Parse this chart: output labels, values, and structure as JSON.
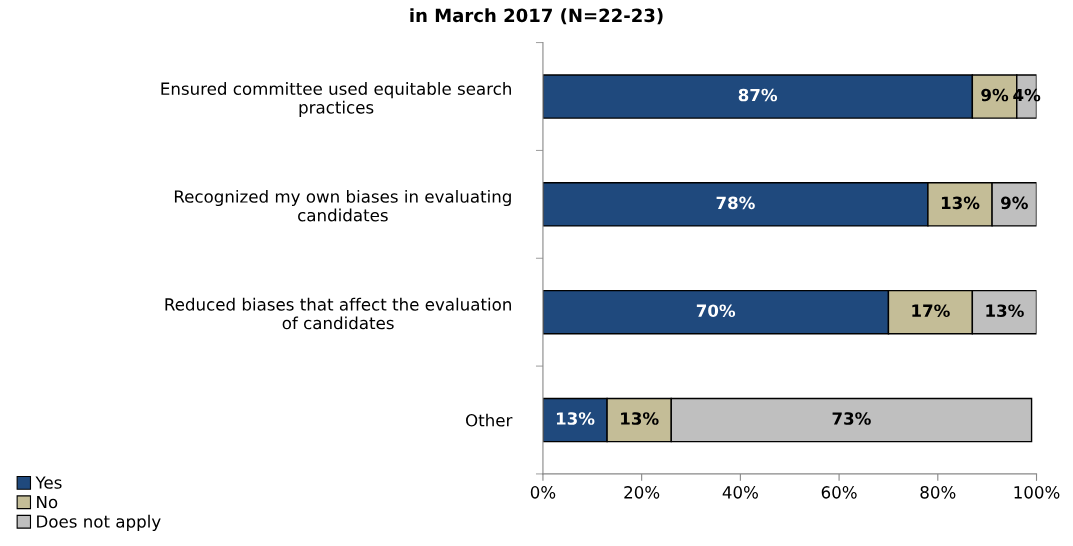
{
  "chart_data": {
    "type": "bar",
    "orientation": "horizontal",
    "stacked": true,
    "title": "in March 2017 (N=22-23)",
    "categories": [
      "Ensured committee used equitable search practices",
      "Recognized my own biases in evaluating candidates",
      "Reduced biases that affect the evaluation of candidates",
      "Other"
    ],
    "series": [
      {
        "name": "Yes",
        "color": "#1f497d",
        "values": [
          87,
          78,
          70,
          13
        ],
        "value_labels": [
          "87%",
          "78%",
          "70%",
          "13%"
        ]
      },
      {
        "name": "No",
        "color": "#c4bd97",
        "values": [
          9,
          13,
          17,
          13
        ],
        "value_labels": [
          "9%",
          "13%",
          "17%",
          "13%"
        ]
      },
      {
        "name": "Does not apply",
        "color": "#bfbfbf",
        "values": [
          4,
          9,
          13,
          73
        ],
        "value_labels": [
          "4%",
          "9%",
          "13%",
          "73%"
        ]
      }
    ],
    "xlim": [
      0,
      100
    ],
    "xticks": [
      {
        "value": 0,
        "label": "0%"
      },
      {
        "value": 20,
        "label": "20%"
      },
      {
        "value": 40,
        "label": "40%"
      },
      {
        "value": 60,
        "label": "60%"
      },
      {
        "value": 80,
        "label": "80%"
      },
      {
        "value": 100,
        "label": "100%"
      }
    ],
    "grid": false,
    "legend": "bottom left"
  }
}
